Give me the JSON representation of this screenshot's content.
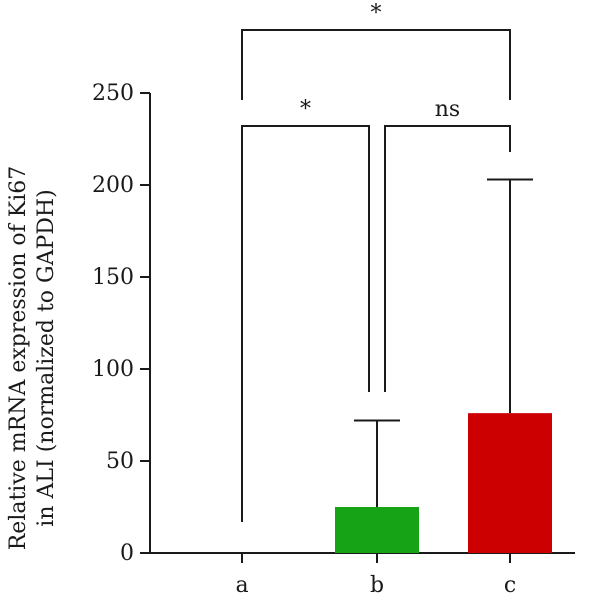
{
  "chart_data": {
    "type": "bar",
    "categories": [
      "a",
      "b",
      "c"
    ],
    "values": [
      0,
      25,
      76
    ],
    "error_upper": [
      0,
      72,
      203
    ],
    "colors": [
      "#16a316",
      "#16a316",
      "#cc0000"
    ],
    "ylabel_line1": "Relative mRNA expression of  Ki67",
    "ylabel_line2": "in ALI (normalized to GAPDH)",
    "ylim": [
      0,
      250
    ],
    "yticks": [
      "0",
      "50",
      "100",
      "150",
      "200",
      "250"
    ],
    "grid": false,
    "comparisons": [
      {
        "from": "a",
        "to": "c",
        "label": "*"
      },
      {
        "from": "a",
        "to": "b",
        "label": "*"
      },
      {
        "from": "b",
        "to": "c",
        "label": "ns"
      }
    ]
  }
}
